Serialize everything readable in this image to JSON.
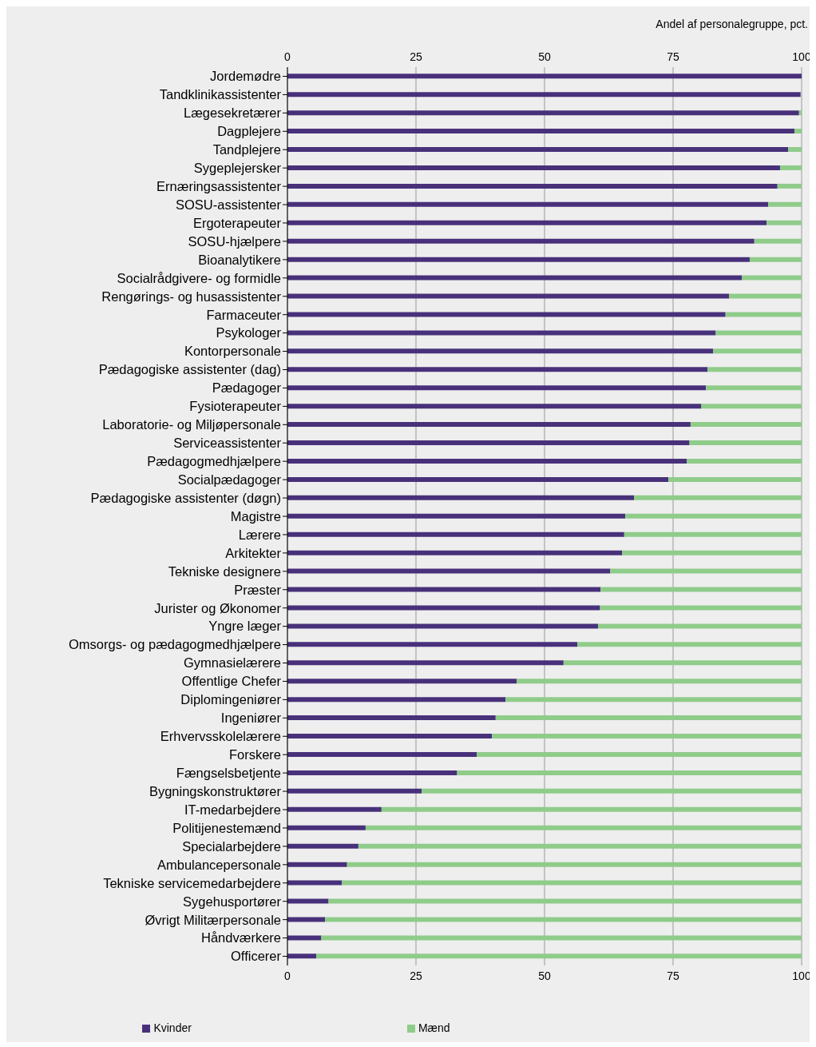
{
  "chart_data": {
    "type": "bar",
    "orientation": "horizontal",
    "stacked": true,
    "xlabel": "Andel af personalegruppe, pct.",
    "categories": [
      "Jordemødre",
      "Tandklinikassistenter",
      "Lægesekretærer",
      "Dagplejere",
      "Tandplejere",
      "Sygeplejersker",
      "Ernæringsassistenter",
      "SOSU-assistenter",
      "Ergoterapeuter",
      "SOSU-hjælpere",
      "Bioanalytikere",
      "Socialrådgivere- og formidle",
      "Rengørings- og husassistenter",
      "Farmaceuter",
      "Psykologer",
      "Kontorpersonale",
      "Pædagogiske assistenter (dag)",
      "Pædagoger",
      "Fysioterapeuter",
      "Laboratorie- og Miljøpersonale",
      "Serviceassistenter",
      "Pædagogmedhjælpere",
      "Socialpædagoger",
      "Pædagogiske assistenter (døgn)",
      "Magistre",
      "Lærere",
      "Arkitekter",
      "Tekniske designere",
      "Præster",
      "Jurister og Økonomer",
      "Yngre læger",
      "Omsorgs- og pædagogmedhjælpere",
      "Gymnasielærere",
      "Offentlige Chefer",
      "Diplomingeniører",
      "Ingeniører",
      "Erhvervsskolelærere",
      "Forskere",
      "Fængselsbetjente",
      "Bygningskonstruktører",
      "IT-medarbejdere",
      "Politijenestemænd",
      "Specialarbejdere",
      "Ambulancepersonale",
      "Tekniske servicemedarbejdere",
      "Sygehusportører",
      "Øvrigt Militærpersonale",
      "Håndværkere",
      "Officerer"
    ],
    "series": [
      {
        "name": "Kvinder",
        "color": "#48317a",
        "values": [
          100,
          99.8,
          99.5,
          98.6,
          97.4,
          95.8,
          95.3,
          93.5,
          93.2,
          90.8,
          89.9,
          88.4,
          85.9,
          85.2,
          83.3,
          82.8,
          81.7,
          81.4,
          80.5,
          78.4,
          78.2,
          77.7,
          74.1,
          67.4,
          65.7,
          65.5,
          65.1,
          62.8,
          60.9,
          60.8,
          60.4,
          56.4,
          53.7,
          44.6,
          42.4,
          40.5,
          39.8,
          36.8,
          33.0,
          26.1,
          18.3,
          15.2,
          13.8,
          11.6,
          10.6,
          8.0,
          7.3,
          6.6,
          5.6
        ]
      },
      {
        "name": "Mænd",
        "color": "#8fcc8a",
        "values": [
          0,
          null,
          0.5,
          1.4,
          2.6,
          4.2,
          4.7,
          6.5,
          6.8,
          9.2,
          10.1,
          11.6,
          14.1,
          14.8,
          16.7,
          17.2,
          18.3,
          18.6,
          19.5,
          21.6,
          21.8,
          22.3,
          25.9,
          32.6,
          34.3,
          34.5,
          34.9,
          37.2,
          39.1,
          39.2,
          39.6,
          43.6,
          46.3,
          55.4,
          57.6,
          59.5,
          60.2,
          63.2,
          67.0,
          73.9,
          81.7,
          84.8,
          86.2,
          88.4,
          89.4,
          92.0,
          92.7,
          93.4,
          94.4
        ]
      }
    ],
    "xlim": [
      0,
      100
    ],
    "xticks": [
      0,
      25,
      50,
      75,
      100
    ],
    "x2lim": [
      0,
      100
    ],
    "x2ticks": [
      0,
      25,
      50,
      75,
      100
    ],
    "grid": "x",
    "legend": "bottom"
  }
}
